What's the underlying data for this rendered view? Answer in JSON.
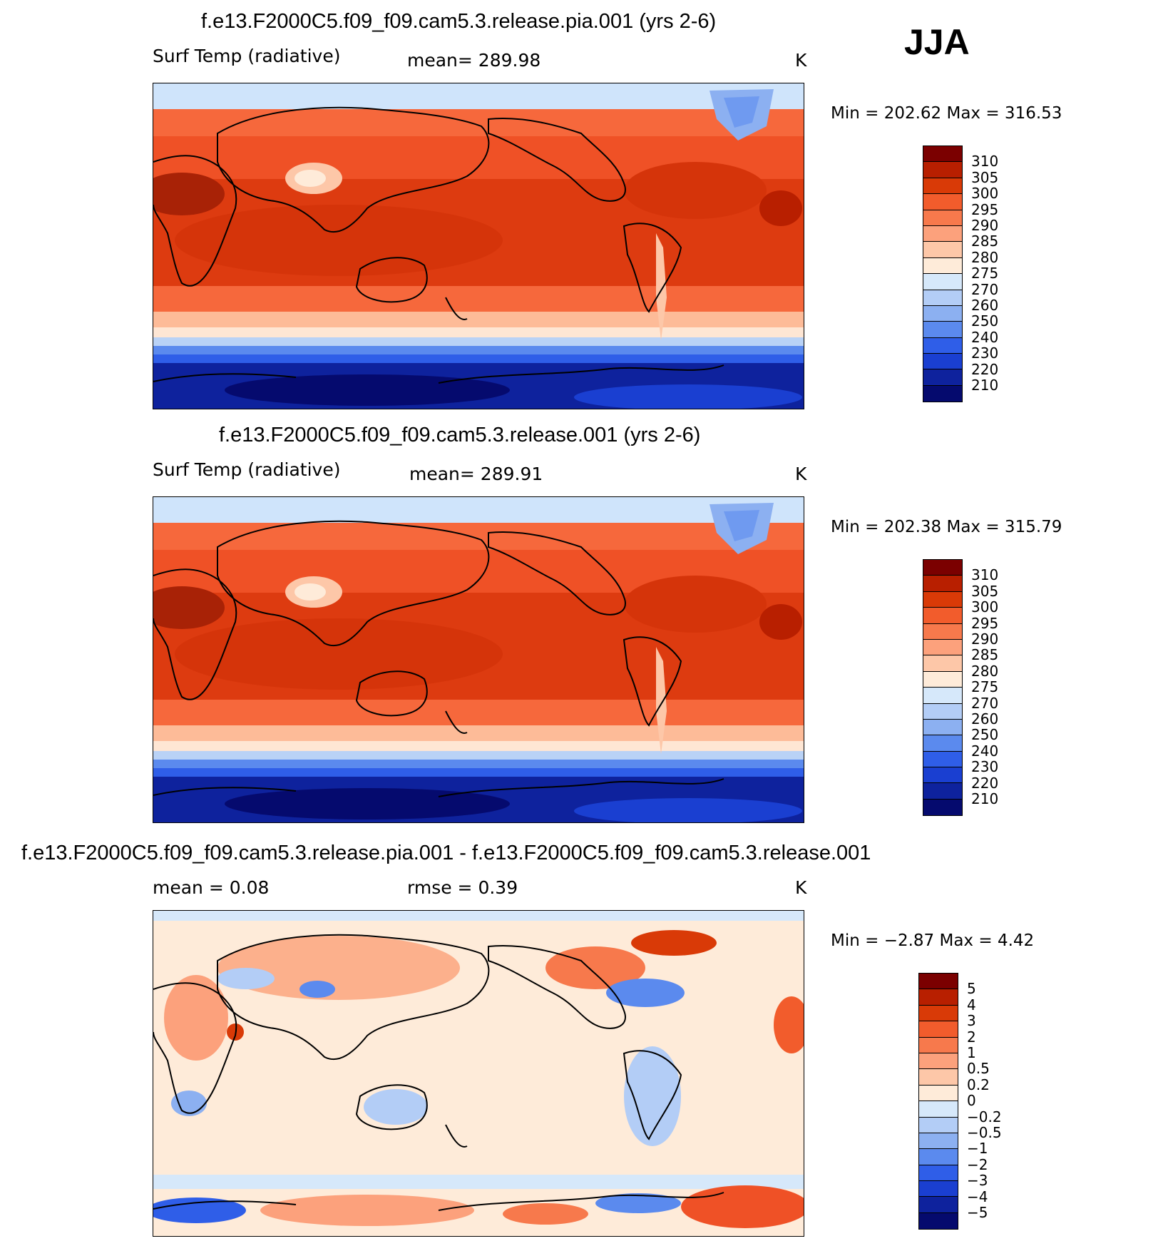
{
  "season": "JJA",
  "panels": [
    {
      "id": "pia",
      "title": "f.e13.F2000C5.f09_f09.cam5.3.release.pia.001 (yrs 2-6)",
      "left_label": "Surf Temp (radiative)",
      "center_label": "mean= 289.98",
      "units": "K",
      "minmax": "Min = 202.62 Max = 316.53",
      "colorbar_labels": [
        "310",
        "305",
        "300",
        "295",
        "290",
        "285",
        "280",
        "275",
        "270",
        "260",
        "250",
        "240",
        "230",
        "220",
        "210"
      ],
      "colorbar_colors": [
        "#7b0000",
        "#b81f00",
        "#d93a07",
        "#f25c2c",
        "#f7794c",
        "#fca17c",
        "#fdc7a8",
        "#feebd9",
        "#d6e8fa",
        "#b3cdf6",
        "#8cb0f1",
        "#5b8aee",
        "#2f5ee8",
        "#1a3fd1",
        "#0e229d",
        "#050a6e"
      ]
    },
    {
      "id": "control",
      "title": "f.e13.F2000C5.f09_f09.cam5.3.release.001 (yrs 2-6)",
      "left_label": "Surf Temp (radiative)",
      "center_label": "mean= 289.91",
      "units": "K",
      "minmax": "Min = 202.38 Max = 315.79",
      "colorbar_labels": [
        "310",
        "305",
        "300",
        "295",
        "290",
        "285",
        "280",
        "275",
        "270",
        "260",
        "250",
        "240",
        "230",
        "220",
        "210"
      ],
      "colorbar_colors": [
        "#7b0000",
        "#b81f00",
        "#d93a07",
        "#f25c2c",
        "#f7794c",
        "#fca17c",
        "#fdc7a8",
        "#feebd9",
        "#d6e8fa",
        "#b3cdf6",
        "#8cb0f1",
        "#5b8aee",
        "#2f5ee8",
        "#1a3fd1",
        "#0e229d",
        "#050a6e"
      ]
    },
    {
      "id": "diff",
      "title": "f.e13.F2000C5.f09_f09.cam5.3.release.pia.001 - f.e13.F2000C5.f09_f09.cam5.3.release.001",
      "left_label": "mean = 0.08",
      "center_label": "rmse = 0.39",
      "units": "K",
      "minmax": "Min = −2.87 Max = 4.42",
      "colorbar_labels": [
        "5",
        "4",
        "3",
        "2",
        "1",
        "0.5",
        "0.2",
        "0",
        "−0.2",
        "−0.5",
        "−1",
        "−2",
        "−3",
        "−4",
        "−5"
      ],
      "colorbar_colors": [
        "#7b0000",
        "#b81f00",
        "#d93a07",
        "#f25c2c",
        "#f7794c",
        "#fca17c",
        "#fdc7a8",
        "#feebd9",
        "#d6e8fa",
        "#b3cdf6",
        "#8cb0f1",
        "#5b8aee",
        "#2f5ee8",
        "#1a3fd1",
        "#0e229d",
        "#050a6e"
      ]
    }
  ]
}
